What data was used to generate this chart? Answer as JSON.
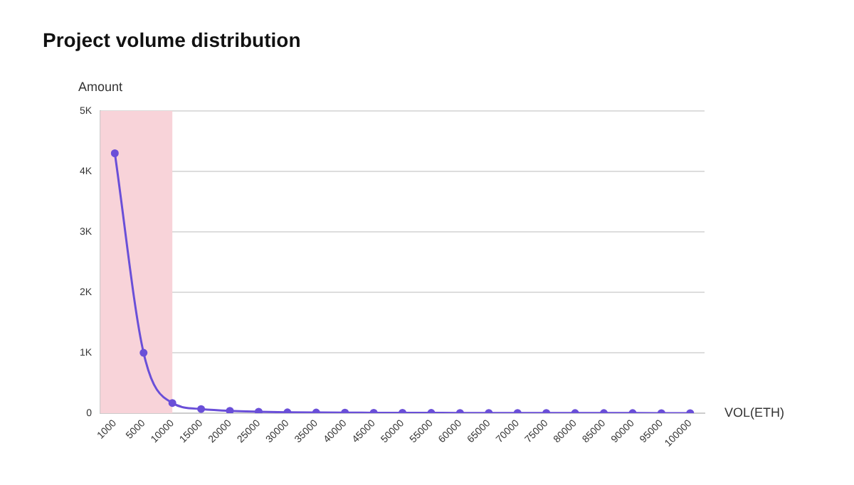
{
  "chart_data": {
    "type": "line",
    "title": "Project volume distribution",
    "xlabel": "VOL(ETH)",
    "ylabel": "Amount",
    "categories": [
      "1000",
      "5000",
      "10000",
      "15000",
      "20000",
      "25000",
      "30000",
      "35000",
      "40000",
      "45000",
      "50000",
      "55000",
      "60000",
      "65000",
      "70000",
      "75000",
      "80000",
      "85000",
      "90000",
      "95000",
      "100000"
    ],
    "series": [
      {
        "color": "#6a4fd8",
        "values": [
          4300,
          1000,
          170,
          70,
          40,
          25,
          15,
          12,
          10,
          8,
          7,
          6,
          5,
          5,
          4,
          4,
          3,
          3,
          3,
          2,
          2
        ]
      }
    ],
    "ylim": [
      0,
      5000
    ],
    "yticks": [
      {
        "value": 0,
        "label": "0"
      },
      {
        "value": 1000,
        "label": "1K"
      },
      {
        "value": 2000,
        "label": "2K"
      },
      {
        "value": 3000,
        "label": "3K"
      },
      {
        "value": 4000,
        "label": "4K"
      },
      {
        "value": 5000,
        "label": "5K"
      }
    ],
    "bands": [
      {
        "axis": "x",
        "from": "1000",
        "to": "10000",
        "color": "#f8d3d9"
      }
    ],
    "grid": "y",
    "legend": false,
    "marker": "circle",
    "line_style": "solid"
  }
}
